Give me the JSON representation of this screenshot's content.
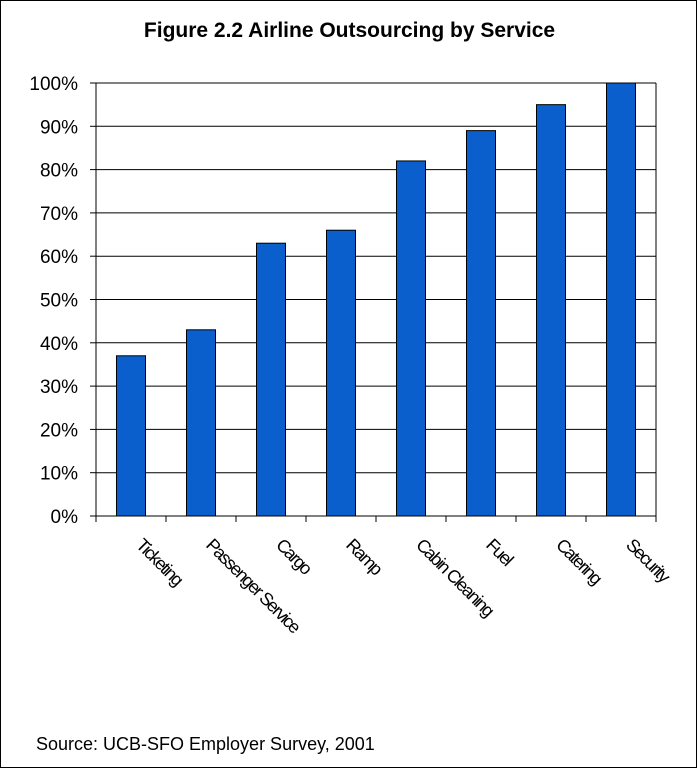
{
  "chart_data": {
    "type": "bar",
    "title": "Figure 2.2  Airline Outsourcing by Service",
    "categories": [
      "Ticketing",
      "Passenger Service",
      "Cargo",
      "Ramp",
      "Cabin Cleaning",
      "Fuel",
      "Catering",
      "Security"
    ],
    "values": [
      37,
      43,
      63,
      66,
      82,
      89,
      95,
      100
    ],
    "ylim": [
      0,
      100
    ],
    "yticks": [
      "0%",
      "10%",
      "20%",
      "30%",
      "40%",
      "50%",
      "60%",
      "70%",
      "80%",
      "90%",
      "100%"
    ],
    "xlabel": "",
    "ylabel": "",
    "grid": true,
    "bar_color": "#0A5FCD"
  },
  "source": "Source: UCB-SFO Employer Survey, 2001"
}
